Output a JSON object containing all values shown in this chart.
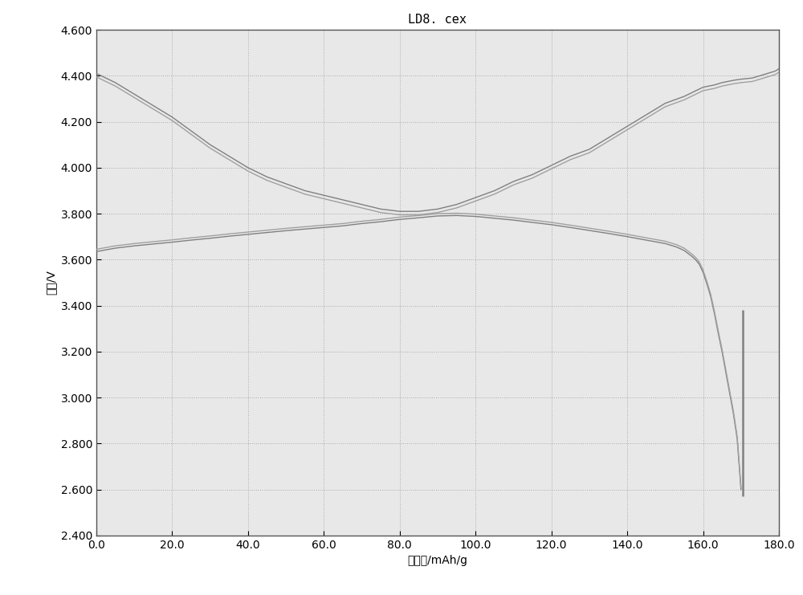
{
  "title": "LD8. cex",
  "xlabel": "比容量/mAh/g",
  "ylabel": "电压/V",
  "xlim": [
    0.0,
    180.0
  ],
  "ylim": [
    2.4,
    4.6
  ],
  "xticks": [
    0.0,
    20.0,
    40.0,
    60.0,
    80.0,
    100.0,
    120.0,
    140.0,
    160.0,
    180.0
  ],
  "yticks": [
    2.4,
    2.6,
    2.8,
    3.0,
    3.2,
    3.4,
    3.6,
    3.8,
    4.0,
    4.2,
    4.4,
    4.6
  ],
  "bg_color": "#e8e8e8",
  "fig_color": "#ffffff",
  "line_color": "#808080",
  "line_color2": "#a0a0a0",
  "grid_color": "#aaaaaa",
  "title_fontsize": 11,
  "label_fontsize": 10,
  "tick_fontsize": 10,
  "charge_curve1_x": [
    0.0,
    5,
    10,
    15,
    20,
    25,
    30,
    35,
    40,
    45,
    50,
    55,
    60,
    65,
    70,
    75,
    80,
    85,
    90,
    95,
    100,
    105,
    110,
    115,
    120,
    125,
    130,
    135,
    140,
    145,
    150,
    155,
    160,
    163,
    165,
    168,
    170,
    173,
    175,
    177,
    178,
    179,
    180
  ],
  "charge_curve1_y": [
    4.41,
    4.37,
    4.32,
    4.27,
    4.22,
    4.16,
    4.1,
    4.05,
    4.0,
    3.96,
    3.93,
    3.9,
    3.88,
    3.86,
    3.84,
    3.82,
    3.81,
    3.81,
    3.82,
    3.84,
    3.87,
    3.9,
    3.94,
    3.97,
    4.01,
    4.05,
    4.08,
    4.13,
    4.18,
    4.23,
    4.28,
    4.31,
    4.35,
    4.36,
    4.37,
    4.38,
    4.385,
    4.39,
    4.4,
    4.41,
    4.415,
    4.42,
    4.43
  ],
  "charge_curve2_x": [
    0.0,
    5,
    10,
    15,
    20,
    25,
    30,
    35,
    40,
    45,
    50,
    55,
    60,
    65,
    70,
    75,
    80,
    85,
    90,
    95,
    100,
    105,
    110,
    115,
    120,
    125,
    130,
    135,
    140,
    145,
    150,
    155,
    160,
    163,
    165,
    168,
    170,
    173,
    175,
    177,
    178,
    179,
    180
  ],
  "charge_curve2_y": [
    4.395,
    4.355,
    4.305,
    4.255,
    4.205,
    4.145,
    4.085,
    4.035,
    3.985,
    3.945,
    3.915,
    3.885,
    3.865,
    3.845,
    3.825,
    3.805,
    3.795,
    3.795,
    3.805,
    3.825,
    3.855,
    3.885,
    3.925,
    3.955,
    3.995,
    4.035,
    4.065,
    4.115,
    4.165,
    4.215,
    4.265,
    4.295,
    4.335,
    4.345,
    4.355,
    4.365,
    4.37,
    4.375,
    4.385,
    4.395,
    4.4,
    4.405,
    4.415
  ],
  "discharge_curve1_x": [
    0.0,
    5,
    10,
    15,
    20,
    25,
    30,
    35,
    40,
    45,
    50,
    55,
    60,
    65,
    70,
    75,
    80,
    85,
    90,
    95,
    100,
    105,
    110,
    115,
    120,
    125,
    130,
    135,
    140,
    145,
    150,
    153,
    155,
    157,
    158,
    159,
    160,
    161,
    162,
    163,
    164,
    165,
    166,
    167,
    168,
    169,
    170
  ],
  "discharge_curve1_y": [
    3.635,
    3.65,
    3.66,
    3.668,
    3.676,
    3.685,
    3.693,
    3.702,
    3.71,
    3.718,
    3.726,
    3.733,
    3.74,
    3.747,
    3.757,
    3.765,
    3.775,
    3.782,
    3.79,
    3.792,
    3.788,
    3.78,
    3.772,
    3.762,
    3.752,
    3.74,
    3.727,
    3.714,
    3.7,
    3.685,
    3.67,
    3.655,
    3.64,
    3.615,
    3.6,
    3.58,
    3.545,
    3.495,
    3.44,
    3.365,
    3.28,
    3.2,
    3.11,
    3.02,
    2.93,
    2.82,
    2.6
  ],
  "discharge_curve2_x": [
    0.0,
    5,
    10,
    15,
    20,
    25,
    30,
    35,
    40,
    45,
    50,
    55,
    60,
    65,
    70,
    75,
    80,
    85,
    90,
    95,
    100,
    105,
    110,
    115,
    120,
    125,
    130,
    135,
    140,
    145,
    150,
    153,
    155,
    157,
    158,
    159,
    160,
    161,
    162,
    163,
    164,
    165,
    166,
    167,
    168,
    169,
    170
  ],
  "discharge_curve2_y": [
    3.645,
    3.66,
    3.67,
    3.678,
    3.686,
    3.695,
    3.703,
    3.712,
    3.72,
    3.728,
    3.736,
    3.743,
    3.75,
    3.757,
    3.767,
    3.775,
    3.785,
    3.792,
    3.8,
    3.802,
    3.798,
    3.79,
    3.782,
    3.772,
    3.762,
    3.75,
    3.737,
    3.724,
    3.71,
    3.695,
    3.68,
    3.665,
    3.65,
    3.625,
    3.61,
    3.59,
    3.555,
    3.505,
    3.45,
    3.375,
    3.29,
    3.21,
    3.12,
    3.03,
    2.94,
    2.83,
    2.61
  ],
  "vertical_line_x": 170.5,
  "vertical_line_y_start": 2.57,
  "vertical_line_y_end": 3.38
}
